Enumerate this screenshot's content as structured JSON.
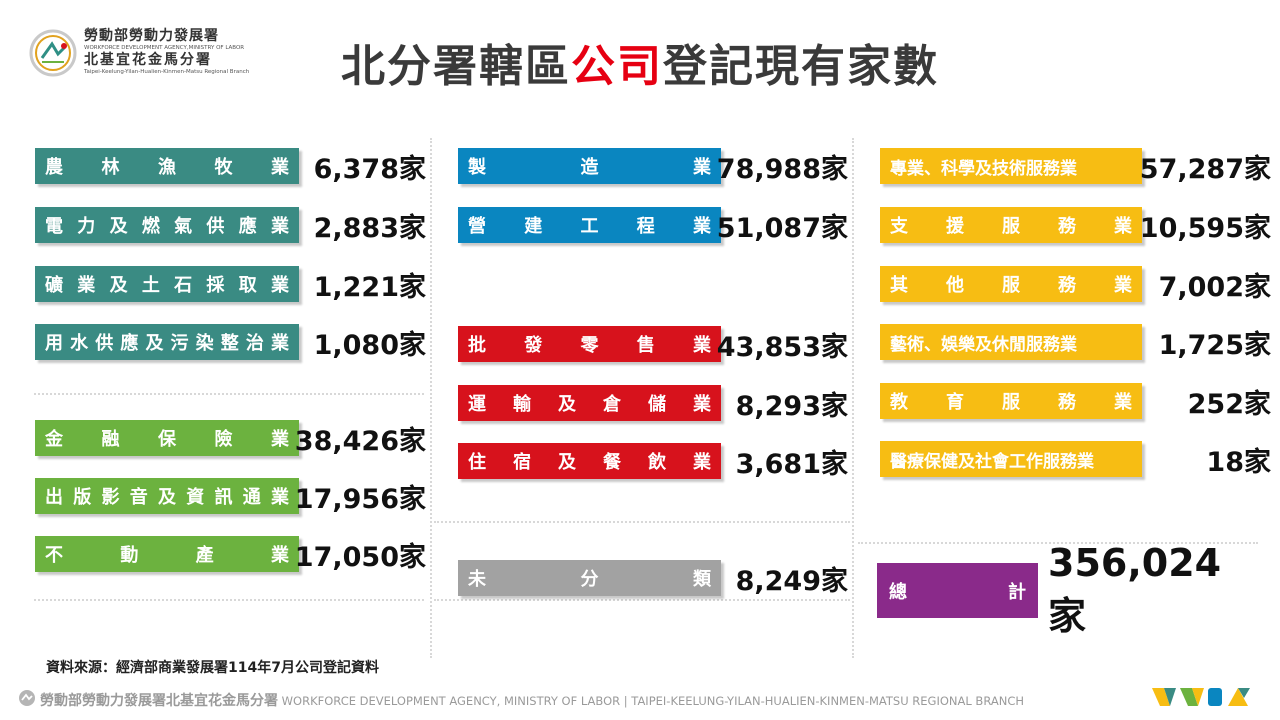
{
  "header": {
    "org_cn_1": "勞動部勞動力發展署",
    "org_en_1": "WORKFORCE DEVELOPMENT AGENCY,MINISTRY OF LABOR",
    "org_cn_2": "北基宜花金馬分署",
    "org_en_2": "Taipei-Keelung-Yilan-Hualien-Kinmen-Matsu Regional Branch",
    "title_pre": "北分署轄區",
    "title_highlight": "公司",
    "title_post": "登記現有家數"
  },
  "colors": {
    "teal": "#3a8b83",
    "green": "#6cb23f",
    "blue": "#0a86c0",
    "red": "#d7121c",
    "gray": "#a2a2a2",
    "yellow": "#f7bd13",
    "purple": "#8a2a8a",
    "title_highlight": "#e60012"
  },
  "industries": [
    {
      "label": "農林漁牧業",
      "value": "6,378家"
    },
    {
      "label": "電力及燃氣供應業",
      "value": "2,883家"
    },
    {
      "label": "礦業及土石採取業",
      "value": "1,221家"
    },
    {
      "label": "用水供應及污染整治業",
      "value": "1,080家"
    },
    {
      "label": "金融保險業",
      "value": "38,426家"
    },
    {
      "label": "出版影音及資訊通業",
      "value": "17,956家"
    },
    {
      "label": "不動產業",
      "value": "17,050家"
    },
    {
      "label": "製造業",
      "value": "78,988家"
    },
    {
      "label": "營建工程業",
      "value": "51,087家"
    },
    {
      "label": "批發零售業",
      "value": "43,853家"
    },
    {
      "label": "運輸及倉儲業",
      "value": "8,293家"
    },
    {
      "label": "住宿及餐飲業",
      "value": "3,681家"
    },
    {
      "label": "未分類",
      "value": "8,249家"
    },
    {
      "label": "專業、科學及技術服務業",
      "value": "57,287家"
    },
    {
      "label": "支援服務業",
      "value": "10,595家"
    },
    {
      "label": "其他服務業",
      "value": "7,002家"
    },
    {
      "label": "藝術、娛樂及休閒服務業",
      "value": "1,725家"
    },
    {
      "label": "教育服務業",
      "value": "252家"
    },
    {
      "label": "醫療保健及社會工作服務業",
      "value": "18家"
    }
  ],
  "total": {
    "label": "總計",
    "value": "356,024家"
  },
  "source": "資料來源：經濟部商業發展署114年7月公司登記資料",
  "footer": {
    "cn": "勞動部勞動力發展署北基宜花金馬分署",
    "en": "WORKFORCE DEVELOPMENT AGENCY, MINISTRY OF LABOR  |  TAIPEI-KEELUNG-YILAN-HUALIEN-KINMEN-MATSU REGIONAL BRANCH"
  }
}
